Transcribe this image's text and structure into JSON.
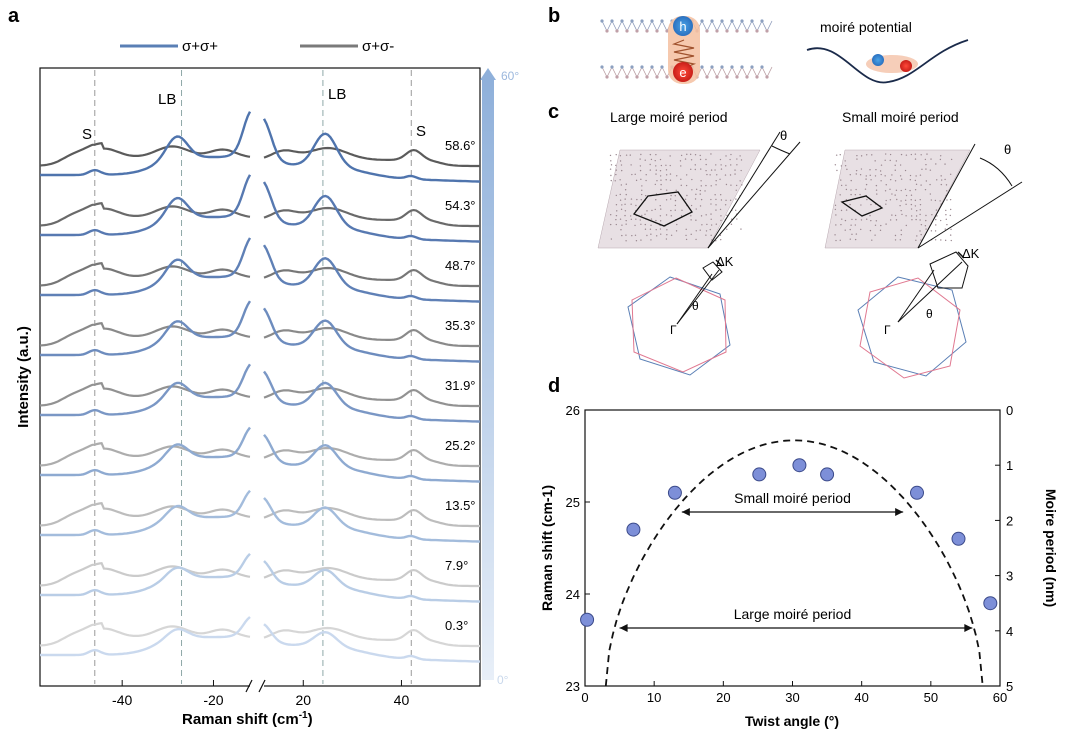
{
  "panels": {
    "a": {
      "label": "a",
      "legend": [
        {
          "name": "σ+σ+",
          "color": "#5a7fb5"
        },
        {
          "name": "σ+σ-",
          "color": "#7a7a7a"
        }
      ],
      "ylabel": "Intensity (a.u.)",
      "xlabel_main": "Raman shift (cm",
      "xlabel_sup": "-1",
      "xlabel_end": ")",
      "xticks_left": [
        "-40",
        "-20"
      ],
      "xticks_right": [
        "20",
        "40"
      ],
      "peak_labels": {
        "lb_left": "LB",
        "lb_right": "LB",
        "s_left": "S",
        "s_right": "S"
      },
      "gradient_bar": {
        "top": "60°",
        "bottom": "0°"
      }
    },
    "b": {
      "label": "b",
      "moire_potential": "moiré potential",
      "hole": "h",
      "electron": "e"
    },
    "c": {
      "label": "c",
      "left_title": "Large moiré period",
      "right_title": "Small moiré period",
      "theta": "θ",
      "delta_k": "ΔK",
      "gamma": "Γ"
    },
    "d": {
      "label": "d"
    }
  },
  "chart_data": [
    {
      "type": "line",
      "title": "",
      "xlabel": "Raman shift (cm-1)",
      "ylabel": "Intensity (a.u.)",
      "x_ranges": [
        [
          -58,
          -12
        ],
        [
          12,
          56
        ]
      ],
      "reference_lines_x": [
        -46,
        -27,
        24,
        42
      ],
      "series_names": [
        "σ+σ+",
        "σ+σ-"
      ],
      "twist_angles": [
        "58.6°",
        "54.3°",
        "48.7°",
        "35.3°",
        "31.9°",
        "25.2°",
        "13.5°",
        "7.9°",
        "0.3°"
      ],
      "colors_co": [
        "#4f74ad",
        "#5779b1",
        "#5f80b6",
        "#6d8cbe",
        "#7a97c5",
        "#8eaad1",
        "#a3bcdc",
        "#b9cde6",
        "#cad9ee"
      ],
      "colors_cross": [
        "#5b5b5b",
        "#6a6a6a",
        "#777777",
        "#8a8a8a",
        "#929292",
        "#adadad",
        "#bdbdbd",
        "#cbcbcb",
        "#d6d6d6"
      ]
    },
    {
      "type": "scatter",
      "title": "",
      "xlabel": "Twist angle  (°)",
      "ylabel": "Raman shift (cm-1)",
      "y2label": "Moire period (nm)",
      "xlim": [
        0,
        60
      ],
      "ylim": [
        23,
        26
      ],
      "y2lim": [
        5,
        0
      ],
      "xticks": [
        0,
        10,
        20,
        30,
        40,
        50,
        60
      ],
      "yticks": [
        23,
        24,
        25,
        26
      ],
      "y2ticks": [
        0,
        1,
        2,
        3,
        4,
        5
      ],
      "points": [
        {
          "x": 0.3,
          "y": 23.72
        },
        {
          "x": 7.0,
          "y": 24.7
        },
        {
          "x": 13.0,
          "y": 25.1
        },
        {
          "x": 25.2,
          "y": 25.3
        },
        {
          "x": 31.0,
          "y": 25.4
        },
        {
          "x": 35.0,
          "y": 25.3
        },
        {
          "x": 48.0,
          "y": 25.1
        },
        {
          "x": 54.0,
          "y": 24.6
        },
        {
          "x": 58.6,
          "y": 23.9
        }
      ],
      "curve_peak": {
        "x": 30,
        "y2": 0.55
      },
      "annotations": [
        "Small moiré period",
        "Large moiré period"
      ]
    }
  ]
}
